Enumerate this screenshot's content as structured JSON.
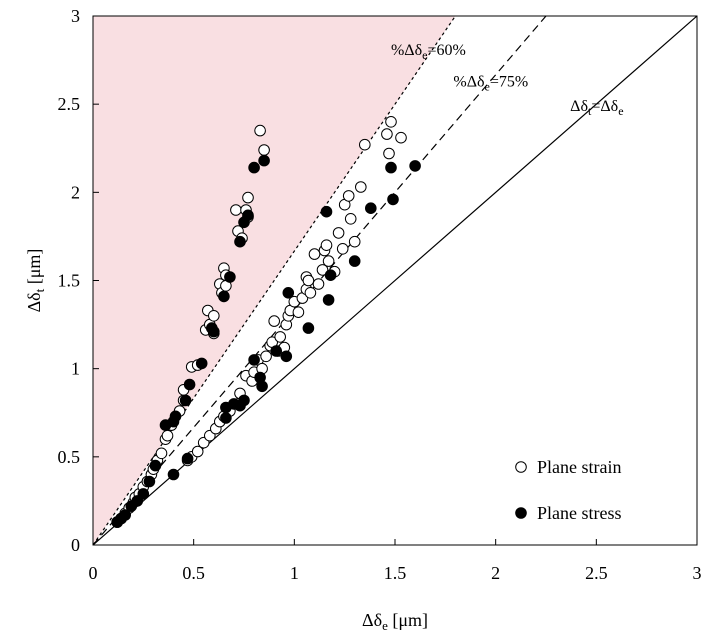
{
  "chart_data": {
    "type": "scatter",
    "xlabel": "Δδe [μm]",
    "ylabel": "Δδt [μm]",
    "xlim": [
      0,
      3
    ],
    "ylim": [
      0,
      3
    ],
    "xticks": [
      "0",
      "0.5",
      "1",
      "1.5",
      "2",
      "2.5",
      "3"
    ],
    "yticks": [
      "0",
      "0.5",
      "1",
      "1.5",
      "2",
      "2.5",
      "3"
    ],
    "grid": false,
    "legend_position": "bottom-right",
    "shaded_region_color": "#f9dfe2",
    "reference_lines": [
      {
        "label_main": "%Δδ",
        "label_sub": "e",
        "label_tail": "=60%",
        "ratio": 0.6,
        "style": "dotted"
      },
      {
        "label_main": "%Δδ",
        "label_sub": "e",
        "label_tail": "=75%",
        "ratio": 0.75,
        "style": "dashed"
      },
      {
        "label_main": "Δδ",
        "label_sub": "t",
        "label_tail": "=Δδ",
        "label_sub2": "e",
        "ratio": 1.0,
        "style": "solid"
      }
    ],
    "series": [
      {
        "name": "Plane strain",
        "marker": "open-circle",
        "points": [
          [
            0.12,
            0.13
          ],
          [
            0.14,
            0.15
          ],
          [
            0.16,
            0.18
          ],
          [
            0.18,
            0.21
          ],
          [
            0.2,
            0.24
          ],
          [
            0.21,
            0.27
          ],
          [
            0.23,
            0.29
          ],
          [
            0.25,
            0.33
          ],
          [
            0.27,
            0.36
          ],
          [
            0.29,
            0.4
          ],
          [
            0.3,
            0.43
          ],
          [
            0.32,
            0.48
          ],
          [
            0.34,
            0.52
          ],
          [
            0.36,
            0.6
          ],
          [
            0.37,
            0.62
          ],
          [
            0.39,
            0.68
          ],
          [
            0.43,
            0.76
          ],
          [
            0.45,
            0.82
          ],
          [
            0.45,
            0.88
          ],
          [
            0.49,
            1.01
          ],
          [
            0.52,
            1.02
          ],
          [
            0.56,
            1.22
          ],
          [
            0.57,
            1.33
          ],
          [
            0.58,
            1.25
          ],
          [
            0.6,
            1.2
          ],
          [
            0.6,
            1.3
          ],
          [
            0.63,
            1.48
          ],
          [
            0.64,
            1.43
          ],
          [
            0.65,
            1.57
          ],
          [
            0.66,
            1.47
          ],
          [
            0.66,
            1.53
          ],
          [
            0.71,
            1.9
          ],
          [
            0.72,
            1.78
          ],
          [
            0.74,
            1.74
          ],
          [
            0.76,
            1.9
          ],
          [
            0.77,
            1.97
          ],
          [
            0.77,
            1.86
          ],
          [
            0.83,
            2.35
          ],
          [
            0.85,
            2.24
          ],
          [
            0.47,
            0.48
          ],
          [
            0.49,
            0.5
          ],
          [
            0.52,
            0.53
          ],
          [
            0.55,
            0.58
          ],
          [
            0.58,
            0.62
          ],
          [
            0.61,
            0.66
          ],
          [
            0.63,
            0.7
          ],
          [
            0.65,
            0.73
          ],
          [
            0.68,
            0.76
          ],
          [
            0.72,
            0.8
          ],
          [
            0.73,
            0.86
          ],
          [
            0.76,
            0.96
          ],
          [
            0.79,
            0.93
          ],
          [
            0.8,
            0.98
          ],
          [
            0.82,
            1.05
          ],
          [
            0.84,
            1.0
          ],
          [
            0.86,
            1.07
          ],
          [
            0.88,
            1.13
          ],
          [
            0.89,
            1.15
          ],
          [
            0.9,
            1.27
          ],
          [
            0.92,
            1.1
          ],
          [
            0.93,
            1.18
          ],
          [
            0.95,
            1.12
          ],
          [
            0.96,
            1.25
          ],
          [
            0.97,
            1.3
          ],
          [
            0.98,
            1.33
          ],
          [
            1.0,
            1.38
          ],
          [
            1.02,
            1.32
          ],
          [
            1.04,
            1.4
          ],
          [
            1.06,
            1.45
          ],
          [
            1.06,
            1.52
          ],
          [
            1.07,
            1.5
          ],
          [
            1.08,
            1.43
          ],
          [
            1.1,
            1.65
          ],
          [
            1.12,
            1.48
          ],
          [
            1.14,
            1.56
          ],
          [
            1.15,
            1.67
          ],
          [
            1.16,
            1.7
          ],
          [
            1.17,
            1.61
          ],
          [
            1.2,
            1.55
          ],
          [
            1.22,
            1.77
          ],
          [
            1.24,
            1.68
          ],
          [
            1.25,
            1.93
          ],
          [
            1.27,
            1.98
          ],
          [
            1.28,
            1.85
          ],
          [
            1.3,
            1.72
          ],
          [
            1.33,
            2.03
          ],
          [
            1.35,
            2.27
          ],
          [
            1.46,
            2.33
          ],
          [
            1.47,
            2.22
          ],
          [
            1.48,
            2.4
          ],
          [
            1.53,
            2.31
          ]
        ]
      },
      {
        "name": "Plane stress",
        "marker": "filled-circle",
        "points": [
          [
            0.12,
            0.13
          ],
          [
            0.14,
            0.15
          ],
          [
            0.16,
            0.17
          ],
          [
            0.19,
            0.22
          ],
          [
            0.22,
            0.25
          ],
          [
            0.25,
            0.29
          ],
          [
            0.28,
            0.36
          ],
          [
            0.31,
            0.45
          ],
          [
            0.36,
            0.68
          ],
          [
            0.4,
            0.7
          ],
          [
            0.41,
            0.73
          ],
          [
            0.46,
            0.82
          ],
          [
            0.48,
            0.91
          ],
          [
            0.54,
            1.03
          ],
          [
            0.59,
            1.23
          ],
          [
            0.6,
            1.21
          ],
          [
            0.65,
            1.41
          ],
          [
            0.68,
            1.52
          ],
          [
            0.73,
            1.72
          ],
          [
            0.75,
            1.83
          ],
          [
            0.77,
            1.87
          ],
          [
            0.8,
            2.14
          ],
          [
            0.85,
            2.18
          ],
          [
            0.4,
            0.4
          ],
          [
            0.47,
            0.49
          ],
          [
            0.66,
            0.78
          ],
          [
            0.66,
            0.72
          ],
          [
            0.7,
            0.8
          ],
          [
            0.73,
            0.79
          ],
          [
            0.75,
            0.82
          ],
          [
            0.8,
            1.05
          ],
          [
            0.83,
            0.95
          ],
          [
            0.84,
            0.9
          ],
          [
            0.91,
            1.1
          ],
          [
            0.96,
            1.07
          ],
          [
            0.97,
            1.43
          ],
          [
            1.07,
            1.23
          ],
          [
            1.16,
            1.89
          ],
          [
            1.17,
            1.39
          ],
          [
            1.18,
            1.53
          ],
          [
            1.3,
            1.61
          ],
          [
            1.38,
            1.91
          ],
          [
            1.48,
            2.14
          ],
          [
            1.49,
            1.96
          ],
          [
            1.6,
            2.15
          ]
        ]
      }
    ]
  }
}
